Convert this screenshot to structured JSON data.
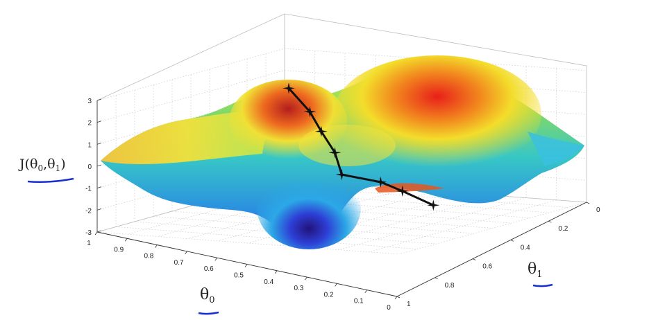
{
  "chart_data": {
    "type": "surface",
    "title": "",
    "zlabel_main": "J(θ",
    "zlabel_sub0": "0",
    "zlabel_mid": ",θ",
    "zlabel_sub1": "1",
    "zlabel_end": ")",
    "xlabel_main": "θ",
    "xlabel_sub": "0",
    "ylabel_main": "θ",
    "ylabel_sub": "1",
    "zlim": [
      -3,
      3
    ],
    "z_ticks": [
      "3",
      "2",
      "1",
      "0",
      "-1",
      "-2",
      "-3"
    ],
    "theta0_ticks": [
      "1",
      "0.9",
      "0.8",
      "0.7",
      "0.6",
      "0.5",
      "0.4",
      "0.3",
      "0.2",
      "0.1",
      "0"
    ],
    "theta1_ticks": [
      "0",
      "0.2",
      "0.4",
      "0.6",
      "0.8",
      "1"
    ],
    "grid": true,
    "colormap": "jet",
    "descent_path": [
      {
        "t0": 0.3,
        "t1": 0.2,
        "z": 2.1
      },
      {
        "t0": 0.3,
        "t1": 0.27,
        "z": 1.1
      },
      {
        "t0": 0.32,
        "t1": 0.32,
        "z": 0.3
      },
      {
        "t0": 0.36,
        "t1": 0.39,
        "z": -0.5
      },
      {
        "t0": 0.42,
        "t1": 0.45,
        "z": -1.3
      },
      {
        "t0": 0.39,
        "t1": 0.56,
        "z": -1.6
      },
      {
        "t0": 0.37,
        "t1": 0.62,
        "z": -2.0
      },
      {
        "t0": 0.35,
        "t1": 0.71,
        "z": -2.6
      }
    ],
    "path_color": "#111111",
    "annotation_color": "#1a2fd0"
  }
}
